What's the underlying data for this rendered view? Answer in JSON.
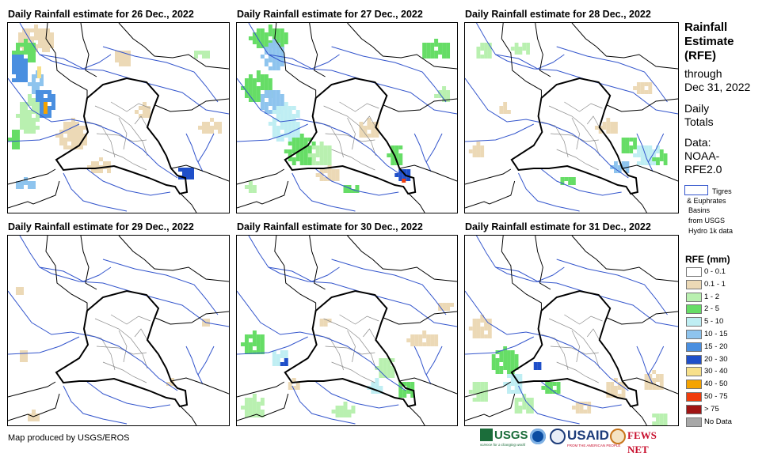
{
  "maps": [
    {
      "title": "Daily Rainfall estimate for 26 Dec., 2022",
      "day": 26
    },
    {
      "title": "Daily Rainfall estimate for 27 Dec., 2022",
      "day": 27
    },
    {
      "title": "Daily Rainfall estimate for 28 Dec., 2022",
      "day": 28
    },
    {
      "title": "Daily Rainfall estimate for 29 Dec., 2022",
      "day": 29
    },
    {
      "title": "Daily Rainfall estimate for 30 Dec., 2022",
      "day": 30
    },
    {
      "title": "Daily Rainfall estimate for 31 Dec., 2022",
      "day": 31
    }
  ],
  "side_panel": {
    "title_line1": "Rainfall",
    "title_line2": "Estimate",
    "title_line3": "(RFE)",
    "through": "through",
    "date": "Dec 31, 2022",
    "daily": "Daily",
    "totals": "Totals",
    "data_label": "Data:",
    "data_source1": "NOAA-",
    "data_source2": "RFE2.0",
    "basin_line1": "Tigres",
    "basin_line2": "& Euphrates",
    "basin_line3": "Basins",
    "basin_line4": "from USGS",
    "basin_line5": "Hydro 1k data"
  },
  "legend": {
    "title": "RFE (mm)",
    "items": [
      {
        "label": "0 - 0.1",
        "color": "#ffffff"
      },
      {
        "label": "0.1 - 1",
        "color": "#ecd9b6"
      },
      {
        "label": "1 - 2",
        "color": "#b9f0b0"
      },
      {
        "label": "2 - 5",
        "color": "#66dd66"
      },
      {
        "label": "5 - 10",
        "color": "#bfeef3"
      },
      {
        "label": "10 - 15",
        "color": "#8ec4ee"
      },
      {
        "label": "15 - 20",
        "color": "#4a8fe0"
      },
      {
        "label": "20 - 30",
        "color": "#1f4fc9"
      },
      {
        "label": "30 - 40",
        "color": "#f7e08a"
      },
      {
        "label": "40 - 50",
        "color": "#f5a300"
      },
      {
        "label": "50 - 75",
        "color": "#f03c0c"
      },
      {
        "label": "> 75",
        "color": "#a01414"
      },
      {
        "label": "No Data",
        "color": "#a8a8a8"
      }
    ]
  },
  "credit": "Map produced by USGS/EROS",
  "logos": {
    "usgs": "USGS",
    "usgs_tagline": "science for a changing world",
    "usaid": "USAID",
    "usaid_tagline": "FROM THE AMERICAN PEOPLE",
    "fews": "FEWS NET"
  },
  "colors": {
    "river": "#3355cc",
    "border": "#000000",
    "province": "#8a8a8a"
  }
}
